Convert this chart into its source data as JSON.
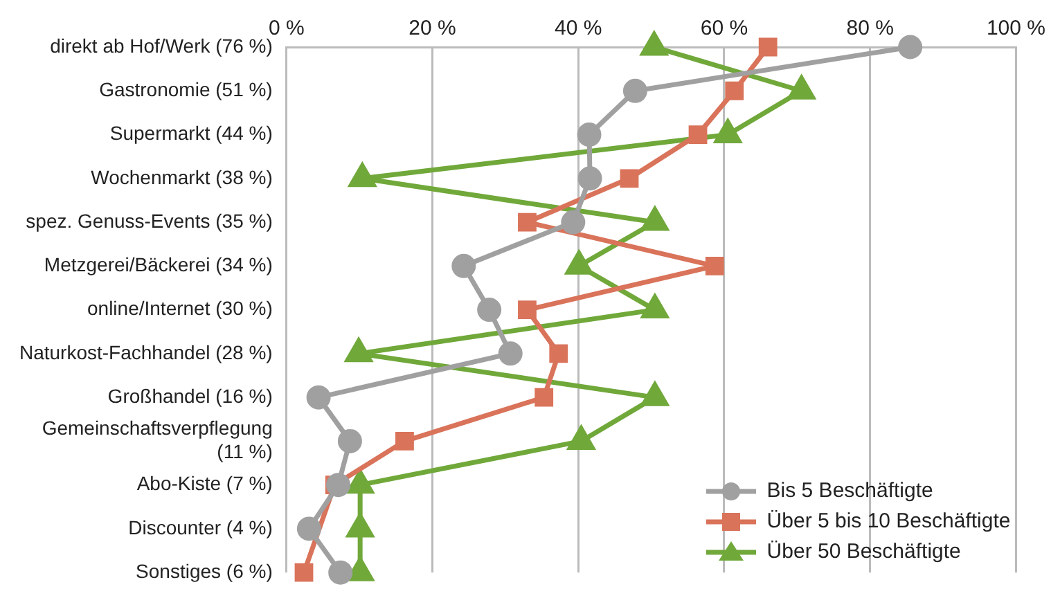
{
  "chart_data": {
    "type": "line",
    "orientation": "horizontal",
    "categories": [
      "direkt ab Hof/Werk (76 %)",
      "Gastronomie (51 %)",
      "Supermarkt (44 %)",
      "Wochenmarkt (38 %)",
      "spez. Genuss-Events (35 %)",
      "Metzgerei/Bäckerei (34 %)",
      "online/Internet (30 %)",
      "Naturkost-Fachhandel (28 %)",
      "Großhandel (16 %)",
      "Gemeinschaftsverpflegung (11 %)",
      "Abo-Kiste (7 %)",
      "Discounter (4 %)",
      "Sonstiges (6 %)"
    ],
    "series": [
      {
        "name": "Bis 5 Beschäftigte",
        "color": "#a0a0a0",
        "marker": "circle",
        "values": [
          85.5,
          47.8,
          41.5,
          41.6,
          39.3,
          24.3,
          27.8,
          30.7,
          4.4,
          8.7,
          7.1,
          3.1,
          7.4
        ]
      },
      {
        "name": "Über 5 bis 10 Beschäftigte",
        "color": "#d9735a",
        "marker": "square",
        "values": [
          66,
          61.4,
          56.4,
          47,
          33,
          58.7,
          33,
          37.3,
          35.3,
          16.2,
          6.6,
          null,
          2.4
        ]
      },
      {
        "name": "Über 50 Beschäftigte",
        "color": "#70a83a",
        "marker": "triangle",
        "values": [
          50.4,
          70.6,
          60.5,
          10.4,
          50.5,
          40.1,
          50.5,
          9.9,
          50.5,
          40.4,
          10.1,
          10.1,
          10.1
        ]
      }
    ],
    "xlim": [
      0,
      100
    ],
    "xticks": [
      {
        "value": 0,
        "label": "0 %"
      },
      {
        "value": 20,
        "label": "20 %"
      },
      {
        "value": 40,
        "label": "40 %"
      },
      {
        "value": 60,
        "label": "60 %"
      },
      {
        "value": 80,
        "label": "80 %"
      },
      {
        "value": 100,
        "label": "100 %"
      }
    ],
    "grid": "x",
    "legend": "bottom right",
    "line_style": "solid"
  }
}
